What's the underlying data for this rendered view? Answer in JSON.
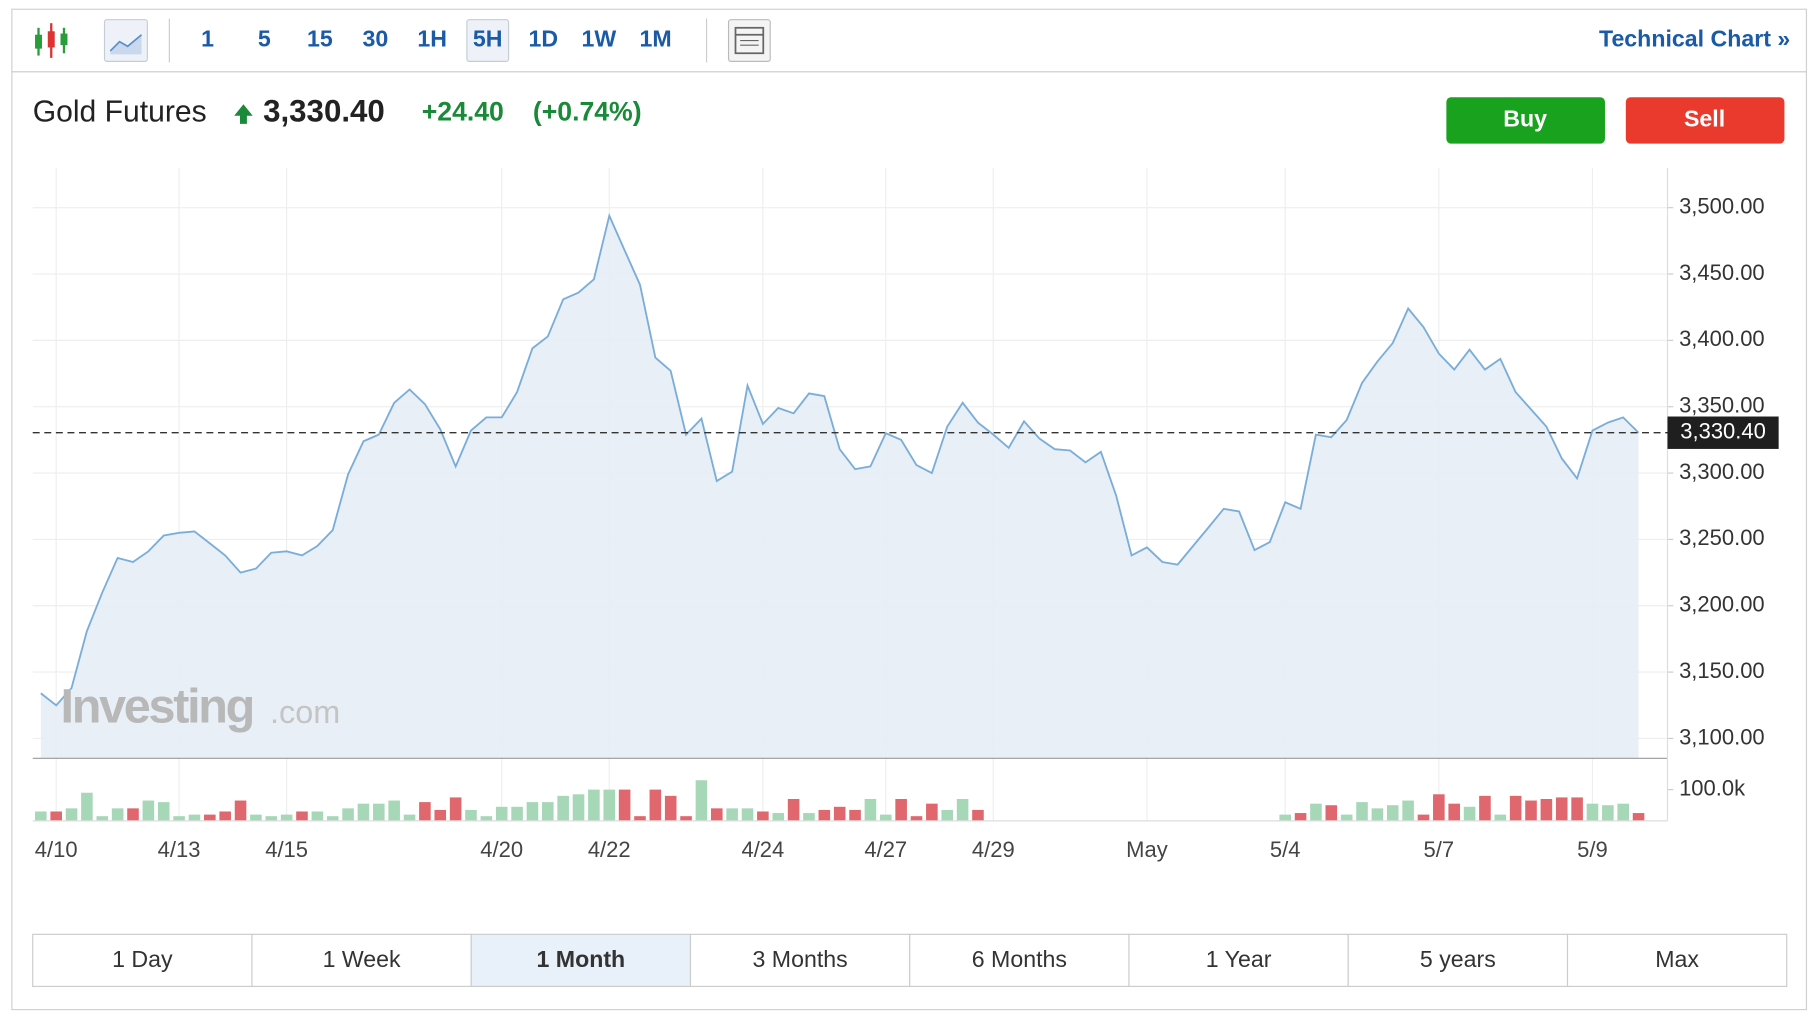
{
  "toolbar": {
    "intervals": [
      "1",
      "5",
      "15",
      "30",
      "1H",
      "5H",
      "1D",
      "1W",
      "1M"
    ],
    "selected_interval": "5H",
    "link": "Technical Chart »"
  },
  "header": {
    "title": "Gold Futures",
    "price": "3,330.40",
    "change": "+24.40",
    "change_pct": "(+0.74%)",
    "buy": "Buy",
    "sell": "Sell"
  },
  "watermark": {
    "brand": "Investing",
    "suffix": ".com"
  },
  "ranges": [
    "1 Day",
    "1 Week",
    "1 Month",
    "3 Months",
    "6 Months",
    "1 Year",
    "5 years",
    "Max"
  ],
  "selected_range": "1 Month",
  "chart_data": {
    "type": "area",
    "color": "#7aaed8",
    "fill_color": "#e6edf6",
    "grid": true,
    "categories": [
      null,
      "4/10",
      null,
      null,
      null,
      null,
      null,
      null,
      null,
      "4/13",
      null,
      null,
      null,
      null,
      null,
      null,
      "4/15",
      null,
      null,
      null,
      null,
      null,
      null,
      null,
      null,
      null,
      null,
      null,
      null,
      null,
      "4/20",
      null,
      null,
      null,
      null,
      null,
      null,
      "4/22",
      null,
      null,
      null,
      null,
      null,
      null,
      null,
      null,
      null,
      "4/24",
      null,
      null,
      null,
      null,
      null,
      null,
      null,
      "4/27",
      null,
      null,
      null,
      null,
      null,
      null,
      "4/29",
      null,
      null,
      null,
      null,
      null,
      null,
      null,
      null,
      null,
      "May",
      null,
      null,
      null,
      null,
      null,
      null,
      null,
      null,
      "5/4",
      null,
      null,
      null,
      null,
      null,
      null,
      null,
      null,
      null,
      "5/7",
      null,
      null,
      null,
      null,
      null,
      null,
      null,
      null,
      null,
      "5/9",
      null,
      null,
      null
    ],
    "values": [
      3134,
      3125,
      3138,
      3181,
      3210,
      3236,
      3233,
      3241,
      3253,
      3255,
      3256,
      3247,
      3238,
      3225,
      3228,
      3240,
      3241,
      3238,
      3245,
      3257,
      3299,
      3324,
      3329,
      3353,
      3363,
      3352,
      3333,
      3305,
      3332,
      3342,
      3342,
      3361,
      3394,
      3403,
      3431,
      3436,
      3446,
      3494,
      3468,
      3442,
      3387,
      3377,
      3329,
      3341,
      3294,
      3301,
      3366,
      3337,
      3349,
      3345,
      3360,
      3358,
      3318,
      3303,
      3305,
      3330,
      3325,
      3306,
      3300,
      3335,
      3353,
      3338,
      3329,
      3319,
      3339,
      3326,
      3318,
      3317,
      3308,
      3316,
      3283,
      3238,
      3244,
      3233,
      3231,
      3245,
      3259,
      3273,
      3271,
      3242,
      3248,
      3278,
      3273,
      3329,
      3327,
      3340,
      3368,
      3384,
      3398,
      3424,
      3410,
      3390,
      3378,
      3393,
      3378,
      3386,
      3361,
      3348,
      3335,
      3311,
      3296,
      3332,
      3338,
      3342,
      3330.4
    ],
    "ylim": [
      3085,
      3530
    ],
    "yticks": [
      {
        "value": 3100,
        "label": "3,100.00"
      },
      {
        "value": 3150,
        "label": "3,150.00"
      },
      {
        "value": 3200,
        "label": "3,200.00"
      },
      {
        "value": 3250,
        "label": "3,250.00"
      },
      {
        "value": 3300,
        "label": "3,300.00"
      },
      {
        "value": 3350,
        "label": "3,350.00"
      },
      {
        "value": 3400,
        "label": "3,400.00"
      },
      {
        "value": 3450,
        "label": "3,450.00"
      },
      {
        "value": 3500,
        "label": "3,500.00"
      }
    ],
    "last_price": {
      "value": 3330.4,
      "label": "3,330.40"
    },
    "volume": {
      "up_color": "#a6d8b8",
      "down_color": "#e0676d",
      "ylim": [
        0,
        200000
      ],
      "yticks": [
        {
          "value": 100000,
          "label": "100.0k"
        }
      ],
      "values": [
        30000,
        30000,
        40000,
        90000,
        15000,
        40000,
        40000,
        65000,
        60000,
        15000,
        20000,
        20000,
        30000,
        65000,
        20000,
        15000,
        20000,
        30000,
        30000,
        15000,
        40000,
        55000,
        55000,
        65000,
        20000,
        60000,
        35000,
        75000,
        35000,
        15000,
        45000,
        45000,
        60000,
        60000,
        80000,
        85000,
        100000,
        100000,
        100000,
        15000,
        100000,
        80000,
        15000,
        130000,
        40000,
        40000,
        40000,
        30000,
        25000,
        70000,
        25000,
        35000,
        45000,
        35000,
        70000,
        20000,
        70000,
        15000,
        55000,
        35000,
        70000,
        35000,
        null,
        null,
        null,
        null,
        null,
        null,
        null,
        null,
        null,
        null,
        null,
        null,
        null,
        null,
        null,
        null,
        null,
        null,
        null,
        20000,
        25000,
        55000,
        50000,
        20000,
        60000,
        40000,
        50000,
        65000,
        20000,
        85000,
        55000,
        45000,
        80000,
        20000,
        80000,
        65000,
        70000,
        75000,
        75000,
        55000,
        50000,
        55000,
        25000
      ]
    }
  }
}
